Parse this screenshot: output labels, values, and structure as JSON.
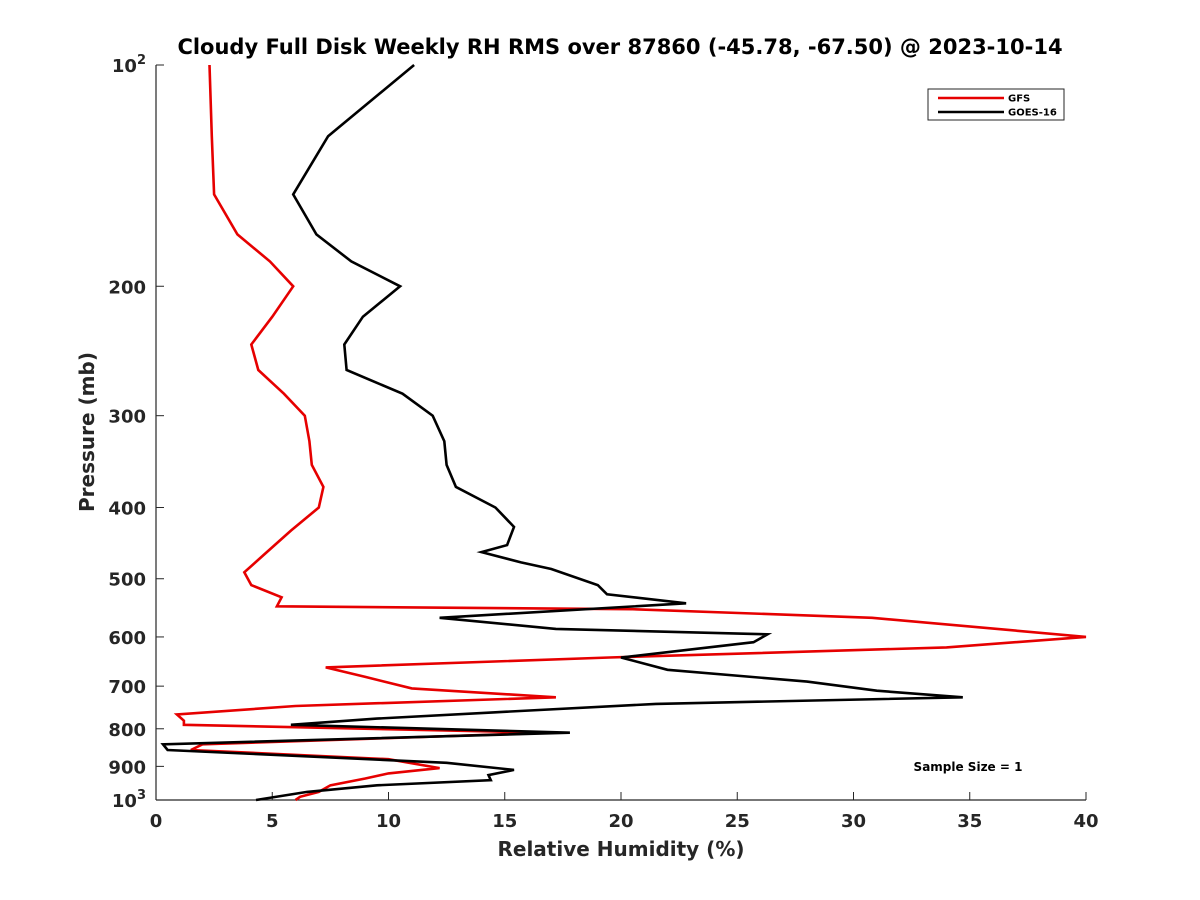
{
  "chart_data": {
    "type": "line",
    "title": "Cloudy Full Disk Weekly RH RMS over 87860 (-45.78, -67.50) @ 2023-10-14",
    "xlabel": "Relative Humidity (%)",
    "ylabel": "Pressure (mb)",
    "xlim": [
      0,
      40
    ],
    "ylim": [
      100,
      1000
    ],
    "yscale": "log",
    "y_reversed": true,
    "grid": false,
    "legend_position": "top-right",
    "x_ticks": [
      {
        "value": 0,
        "label": "0"
      },
      {
        "value": 5,
        "label": "5"
      },
      {
        "value": 10,
        "label": "10"
      },
      {
        "value": 15,
        "label": "15"
      },
      {
        "value": 20,
        "label": "20"
      },
      {
        "value": 25,
        "label": "25"
      },
      {
        "value": 30,
        "label": "30"
      },
      {
        "value": 35,
        "label": "35"
      },
      {
        "value": 40,
        "label": "40"
      }
    ],
    "y_ticks": [
      {
        "value": 100,
        "label": "10",
        "exponent": "2"
      },
      {
        "value": 200,
        "label": "200"
      },
      {
        "value": 300,
        "label": "300"
      },
      {
        "value": 400,
        "label": "400"
      },
      {
        "value": 500,
        "label": "500"
      },
      {
        "value": 600,
        "label": "600"
      },
      {
        "value": 700,
        "label": "700"
      },
      {
        "value": 800,
        "label": "800"
      },
      {
        "value": 900,
        "label": "900"
      },
      {
        "value": 1000,
        "label": "10",
        "exponent": "3"
      }
    ],
    "series": [
      {
        "name": "GFS",
        "color": "#e60000",
        "points": [
          [
            2.3,
            100
          ],
          [
            2.4,
            125
          ],
          [
            2.5,
            150
          ],
          [
            3.5,
            170
          ],
          [
            4.9,
            185
          ],
          [
            5.9,
            200
          ],
          [
            5.0,
            220
          ],
          [
            4.1,
            240
          ],
          [
            4.4,
            260
          ],
          [
            5.5,
            280
          ],
          [
            6.4,
            300
          ],
          [
            6.6,
            325
          ],
          [
            6.7,
            350
          ],
          [
            7.2,
            375
          ],
          [
            7.0,
            400
          ],
          [
            5.8,
            430
          ],
          [
            4.6,
            465
          ],
          [
            3.8,
            490
          ],
          [
            4.1,
            510
          ],
          [
            5.4,
            530
          ],
          [
            5.2,
            545
          ],
          [
            20.5,
            550
          ],
          [
            30.8,
            565
          ],
          [
            40.0,
            600
          ],
          [
            34.0,
            620
          ],
          [
            19.5,
            640
          ],
          [
            7.3,
            660
          ],
          [
            9.0,
            680
          ],
          [
            11.0,
            705
          ],
          [
            17.2,
            725
          ],
          [
            6.0,
            745
          ],
          [
            0.9,
            765
          ],
          [
            1.2,
            780
          ],
          [
            1.2,
            790
          ],
          [
            17.0,
            810
          ],
          [
            2.0,
            840
          ],
          [
            1.5,
            855
          ],
          [
            10.0,
            880
          ],
          [
            12.2,
            905
          ],
          [
            10.0,
            920
          ],
          [
            9.0,
            935
          ],
          [
            7.5,
            955
          ],
          [
            7.0,
            975
          ],
          [
            6.2,
            990
          ],
          [
            6.0,
            1000
          ]
        ]
      },
      {
        "name": "GOES-16",
        "color": "#000000",
        "points": [
          [
            11.1,
            100
          ],
          [
            7.4,
            125
          ],
          [
            5.9,
            150
          ],
          [
            6.9,
            170
          ],
          [
            8.4,
            185
          ],
          [
            10.5,
            200
          ],
          [
            8.9,
            220
          ],
          [
            8.1,
            240
          ],
          [
            8.2,
            260
          ],
          [
            10.6,
            280
          ],
          [
            11.9,
            300
          ],
          [
            12.4,
            325
          ],
          [
            12.5,
            350
          ],
          [
            12.9,
            375
          ],
          [
            14.6,
            400
          ],
          [
            15.4,
            425
          ],
          [
            15.1,
            450
          ],
          [
            14.0,
            460
          ],
          [
            15.7,
            475
          ],
          [
            17.0,
            485
          ],
          [
            19.0,
            510
          ],
          [
            19.4,
            525
          ],
          [
            22.8,
            540
          ],
          [
            12.2,
            565
          ],
          [
            17.2,
            585
          ],
          [
            26.3,
            595
          ],
          [
            25.7,
            610
          ],
          [
            20.0,
            640
          ],
          [
            22.0,
            665
          ],
          [
            28.0,
            690
          ],
          [
            31.0,
            710
          ],
          [
            34.7,
            725
          ],
          [
            21.5,
            740
          ],
          [
            14.5,
            760
          ],
          [
            9.5,
            775
          ],
          [
            5.8,
            790
          ],
          [
            17.8,
            810
          ],
          [
            0.3,
            840
          ],
          [
            0.5,
            855
          ],
          [
            12.5,
            890
          ],
          [
            15.4,
            910
          ],
          [
            14.3,
            925
          ],
          [
            14.4,
            940
          ],
          [
            9.5,
            955
          ],
          [
            6.5,
            975
          ],
          [
            4.3,
            1000
          ]
        ]
      }
    ],
    "annotations": [
      "Sample Size = 1"
    ]
  }
}
